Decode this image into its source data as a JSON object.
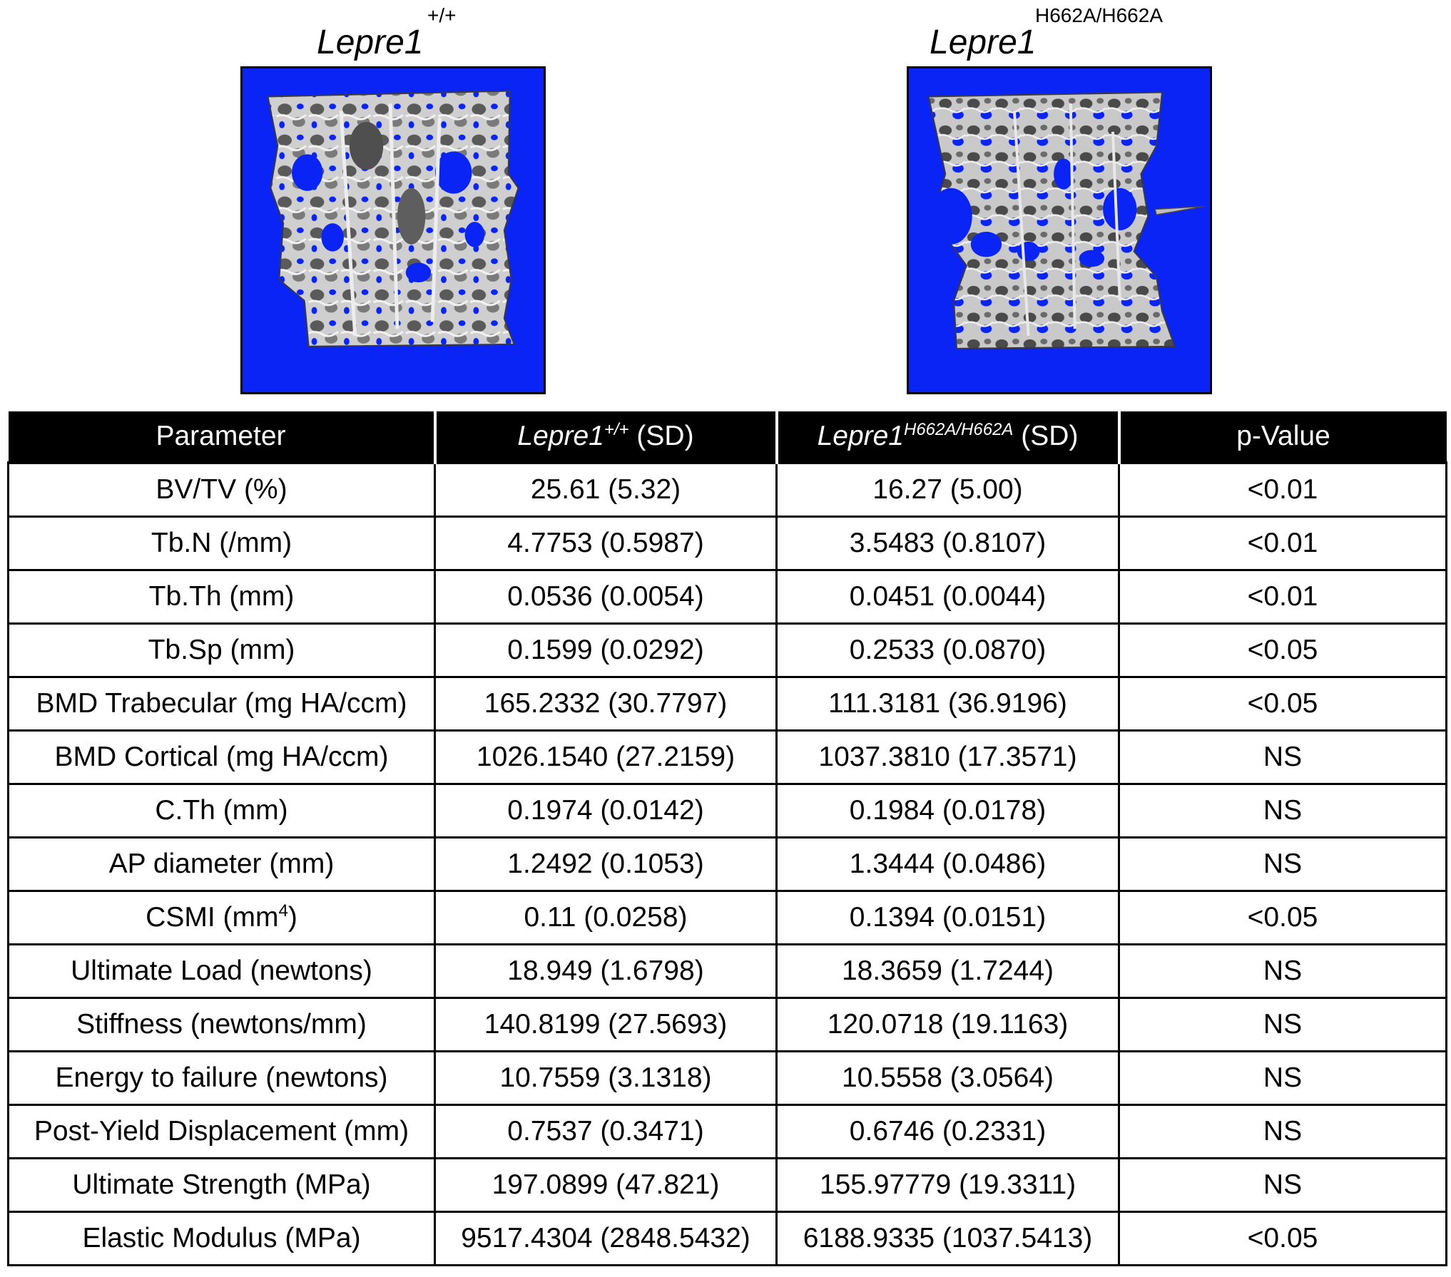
{
  "panels": {
    "left": {
      "gene": "Lepre1",
      "genotype": "+/+"
    },
    "right": {
      "gene": "Lepre1",
      "genotype": "H662A/H662A"
    }
  },
  "table": {
    "headers": {
      "parameter": "Parameter",
      "wt_gene": "Lepre1",
      "wt_genotype": "+/+",
      "wt_suffix": " (SD)",
      "mut_gene": "Lepre1",
      "mut_genotype": "H662A/H662A",
      "mut_suffix": " (SD)",
      "pvalue": "p-Value"
    },
    "rows": [
      {
        "param": "BV/TV (%)",
        "wt": "25.61 (5.32)",
        "mut": "16.27 (5.00)",
        "p": "<0.01"
      },
      {
        "param": "Tb.N (/mm)",
        "wt": "4.7753 (0.5987)",
        "mut": "3.5483 (0.8107)",
        "p": "<0.01"
      },
      {
        "param": "Tb.Th (mm)",
        "wt": "0.0536 (0.0054)",
        "mut": "0.0451 (0.0044)",
        "p": "<0.01"
      },
      {
        "param": "Tb.Sp (mm)",
        "wt": "0.1599 (0.0292)",
        "mut": "0.2533 (0.0870)",
        "p": "<0.05"
      },
      {
        "param": "BMD Trabecular (mg HA/ccm)",
        "wt": "165.2332 (30.7797)",
        "mut": "111.3181 (36.9196)",
        "p": "<0.05"
      },
      {
        "param": "BMD Cortical (mg HA/ccm)",
        "wt": "1026.1540 (27.2159)",
        "mut": "1037.3810 (17.3571)",
        "p": "NS"
      },
      {
        "param": "C.Th (mm)",
        "wt": "0.1974 (0.0142)",
        "mut": "0.1984 (0.0178)",
        "p": "NS"
      },
      {
        "param": "AP diameter (mm)",
        "wt": "1.2492 (0.1053)",
        "mut": "1.3444 (0.0486)",
        "p": "NS"
      },
      {
        "param_prefix": "CSMI (mm",
        "param_sup": "4",
        "param_suffix": ")",
        "wt": "0.11 (0.0258)",
        "mut": "0.1394 (0.0151)",
        "p": "<0.05"
      },
      {
        "param": "Ultimate Load (newtons)",
        "wt": "18.949 (1.6798)",
        "mut": "18.3659 (1.7244)",
        "p": "NS"
      },
      {
        "param": "Stiffness (newtons/mm)",
        "wt": "140.8199 (27.5693)",
        "mut": "120.0718 (19.1163)",
        "p": "NS"
      },
      {
        "param": "Energy to failure (newtons)",
        "wt": "10.7559 (3.1318)",
        "mut": "10.5558 (3.0564)",
        "p": "NS"
      },
      {
        "param": "Post-Yield Displacement (mm)",
        "wt": "0.7537 (0.3471)",
        "mut": "0.6746 (0.2331)",
        "p": "NS"
      },
      {
        "param": "Ultimate Strength (MPa)",
        "wt": "197.0899 (47.821)",
        "mut": "155.97779 (19.3311)",
        "p": "NS"
      },
      {
        "param": "Elastic Modulus (MPa)",
        "wt": "9517.4304 (2848.5432)",
        "mut": "6188.9335 (1037.5413)",
        "p": "<0.05"
      }
    ]
  },
  "colors": {
    "scan_background": "#0a24f5",
    "bone_light": "#d9d9d9",
    "bone_dark": "#6e6e6e",
    "header_background": "#000000",
    "header_text": "#ffffff"
  }
}
